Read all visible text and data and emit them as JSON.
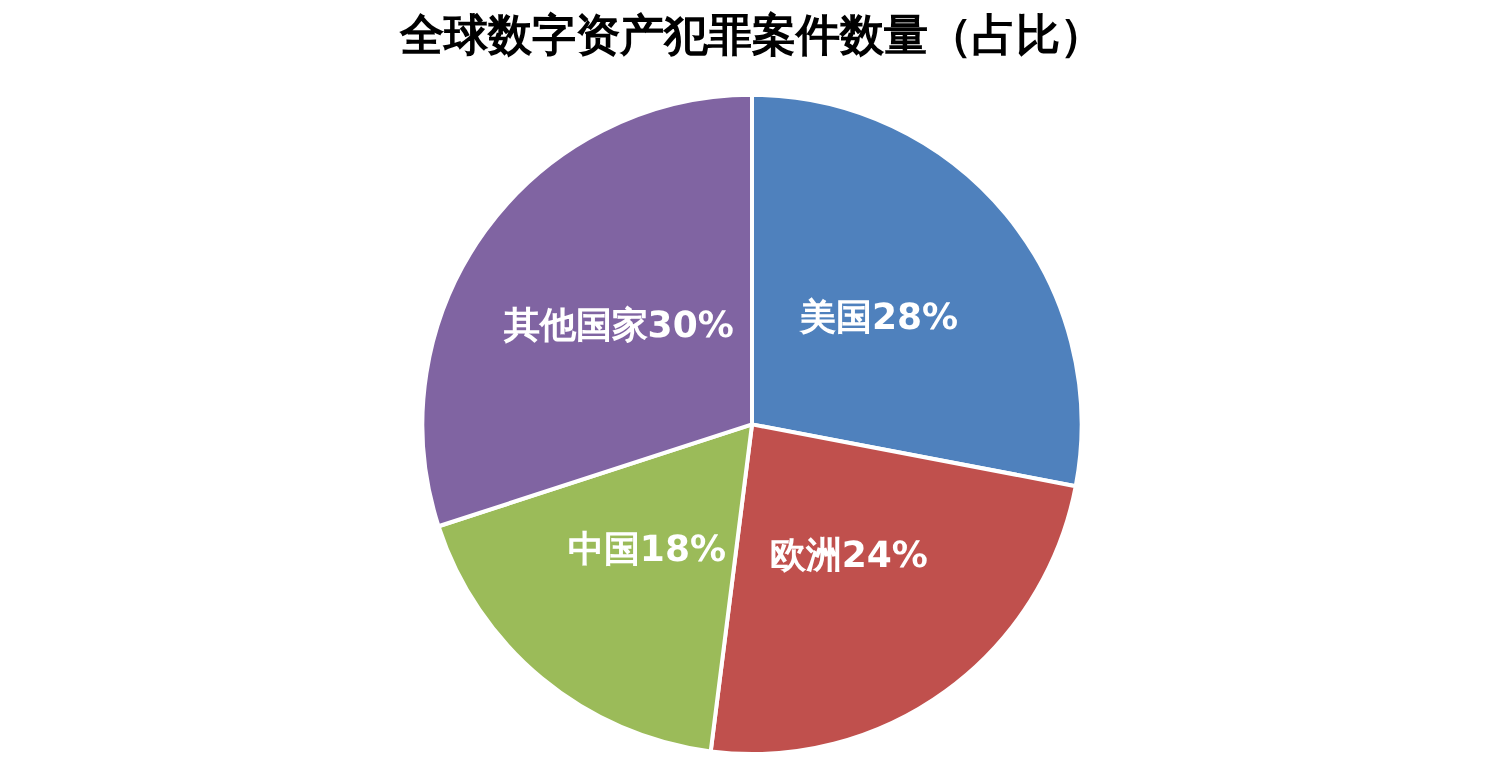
{
  "chart_data": {
    "type": "pie",
    "title": "全球数字资产犯罪案件数量（占比）",
    "categories": [
      "美国",
      "欧洲",
      "中国",
      "其他国家"
    ],
    "values": [
      28,
      24,
      18,
      30
    ],
    "colors": [
      "#4f81bd",
      "#c0504d",
      "#9bbb59",
      "#8064a2"
    ],
    "value_labels": [
      "28%",
      "24%",
      "18%",
      "30%"
    ],
    "legend": false
  }
}
